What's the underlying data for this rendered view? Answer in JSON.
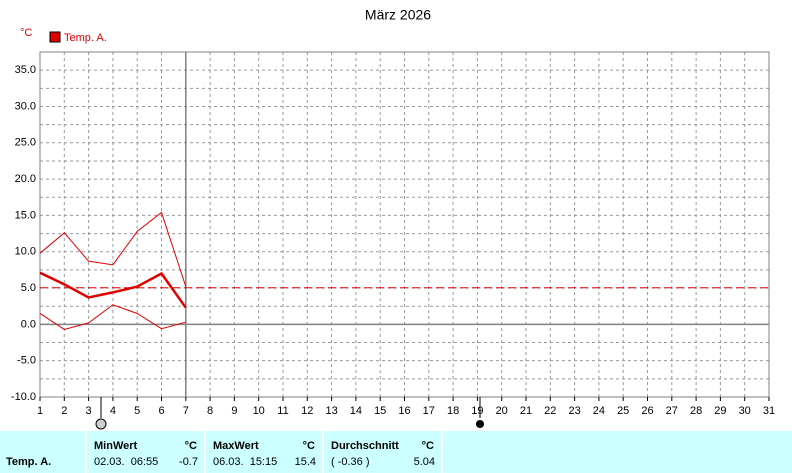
{
  "chart_data": {
    "type": "line",
    "title": "März 2026",
    "ylabel": "°C",
    "x": [
      1,
      2,
      3,
      4,
      5,
      6,
      7
    ],
    "series": [
      {
        "name": "Temp. A.",
        "color": "#e00000",
        "values": [
          7.1,
          5.5,
          3.7,
          4.4,
          5.2,
          7.0,
          2.3
        ],
        "high": [
          9.8,
          12.6,
          8.7,
          8.2,
          12.8,
          15.4,
          5.2
        ],
        "low": [
          1.5,
          -0.7,
          0.2,
          2.7,
          1.5,
          -0.6,
          0.3
        ]
      }
    ],
    "xlim": [
      1,
      31
    ],
    "xticks": [
      1,
      2,
      3,
      4,
      5,
      6,
      7,
      8,
      9,
      10,
      11,
      12,
      13,
      14,
      15,
      16,
      17,
      18,
      19,
      20,
      21,
      22,
      23,
      24,
      25,
      26,
      27,
      28,
      29,
      30,
      31
    ],
    "ylim": [
      -10,
      37.5
    ],
    "yticks": [
      {
        "value": -10,
        "label": "-10.0"
      },
      {
        "value": -5,
        "label": "-5.0"
      },
      {
        "value": 0,
        "label": "0.0"
      },
      {
        "value": 5,
        "label": "5.0"
      },
      {
        "value": 10,
        "label": "10.0"
      },
      {
        "value": 15,
        "label": "15.0"
      },
      {
        "value": 20,
        "label": "20.0"
      },
      {
        "value": 25,
        "label": "25.0"
      },
      {
        "value": 30,
        "label": "30.0"
      },
      {
        "value": 35,
        "label": "35.0"
      }
    ],
    "yminorticks": [
      -7.5,
      -2.5,
      2.5,
      7.5,
      12.5,
      17.5,
      22.5,
      27.5,
      32.5
    ],
    "grid": true,
    "average_line": 5.04,
    "current_day": 7
  },
  "table": {
    "row_label": "Temp. A.",
    "columns": [
      {
        "header": "MinWert",
        "unit": "°C",
        "time": "02.03.  06:55",
        "value": -0.7
      },
      {
        "header": "MaxWert",
        "unit": "°C",
        "time": "06.03.  15:15",
        "value": 15.4
      },
      {
        "header": "Durchschnitt",
        "unit": "°C",
        "time": "( -0.36 )",
        "value": 5.04
      }
    ]
  }
}
